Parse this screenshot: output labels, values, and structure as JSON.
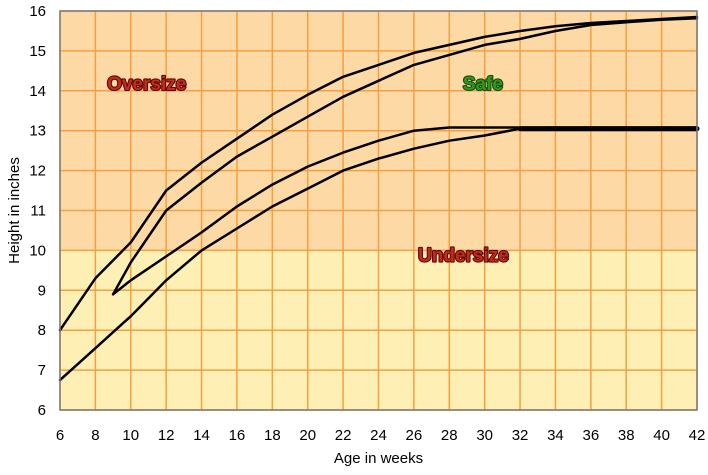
{
  "chart_data": {
    "type": "line",
    "title": "",
    "xlabel": "Age in weeks",
    "ylabel": "Height in inches",
    "xlim": [
      6,
      42
    ],
    "ylim": [
      6,
      16
    ],
    "x_ticks": [
      6,
      8,
      10,
      12,
      14,
      16,
      18,
      20,
      22,
      24,
      26,
      28,
      30,
      32,
      34,
      36,
      38,
      40,
      42
    ],
    "y_ticks": [
      6,
      7,
      8,
      9,
      10,
      11,
      12,
      13,
      14,
      15,
      16
    ],
    "grid": true,
    "background_bands": [
      {
        "y_from": 6,
        "y_to": 10,
        "color": "#FEF0B4"
      },
      {
        "y_from": 10,
        "y_to": 16,
        "color": "#FDD9A5"
      }
    ],
    "grid_color": "#F5A040",
    "region_labels": [
      {
        "text": "Oversize",
        "x": 10.9,
        "y": 14.2,
        "fill": "#C42A1F",
        "stroke": "#5A0A00"
      },
      {
        "text": "Safe",
        "x": 29.9,
        "y": 14.2,
        "fill": "#2E9A1A",
        "stroke": "#1E4A10"
      },
      {
        "text": "Undersize",
        "x": 28.8,
        "y": 9.9,
        "fill": "#C42A1F",
        "stroke": "#5A0A00"
      }
    ],
    "series": [
      {
        "line_width": 2.5,
        "color": "#000000",
        "x": [
          6,
          8,
          10,
          12,
          14,
          16,
          18,
          20,
          22,
          24,
          26,
          28,
          30,
          32,
          34,
          36,
          38,
          40,
          42
        ],
        "y": [
          8.0,
          9.3,
          10.2,
          11.5,
          12.2,
          12.8,
          13.4,
          13.9,
          14.35,
          14.65,
          14.95,
          15.15,
          15.35,
          15.5,
          15.62,
          15.7,
          15.75,
          15.8,
          15.85
        ]
      },
      {
        "line_width": 2.5,
        "color": "#000000",
        "x": [
          9,
          10,
          12,
          14,
          16,
          18,
          20,
          22,
          24,
          26,
          28,
          30,
          32,
          34,
          36,
          38,
          40,
          42
        ],
        "y": [
          8.9,
          9.7,
          11.0,
          11.7,
          12.35,
          12.85,
          13.35,
          13.85,
          14.25,
          14.65,
          14.9,
          15.15,
          15.3,
          15.5,
          15.65,
          15.72,
          15.78,
          15.82
        ]
      },
      {
        "line_width": 2.5,
        "color": "#000000",
        "x": [
          9,
          10,
          12,
          14,
          16,
          18,
          20,
          22,
          24,
          26,
          28,
          30,
          32,
          34,
          36,
          38,
          40,
          42
        ],
        "y": [
          8.9,
          9.25,
          9.85,
          10.45,
          11.1,
          11.65,
          12.1,
          12.45,
          12.75,
          13.0,
          13.08,
          13.08,
          13.08,
          13.08,
          13.08,
          13.08,
          13.08,
          13.08
        ]
      },
      {
        "line_width": 2.5,
        "color": "#000000",
        "x": [
          6,
          8,
          10,
          12,
          14,
          16,
          18,
          20,
          22,
          24,
          26,
          28,
          30,
          32,
          34,
          36,
          38,
          40,
          42
        ],
        "y": [
          6.75,
          7.55,
          8.35,
          9.25,
          10.0,
          10.55,
          11.1,
          11.55,
          12.0,
          12.3,
          12.55,
          12.75,
          12.88,
          13.05,
          13.05,
          13.05,
          13.05,
          13.05,
          13.05
        ]
      },
      {
        "line_width": 5,
        "color": "#000000",
        "x": [
          32,
          42
        ],
        "y": [
          13.05,
          13.05
        ]
      }
    ]
  }
}
